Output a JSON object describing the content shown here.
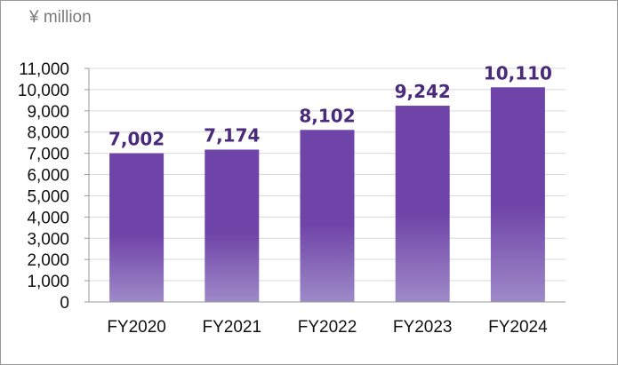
{
  "unit_label": "¥ million",
  "chart_data": {
    "type": "bar",
    "categories": [
      "FY2020",
      "FY2021",
      "FY2022",
      "FY2023",
      "FY2024"
    ],
    "values": [
      7002,
      7174,
      8102,
      9242,
      10110
    ],
    "value_labels": [
      "7,002",
      "7,174",
      "8,102",
      "9,242",
      "10,110"
    ],
    "ylim": [
      0,
      11000
    ],
    "yticks": [
      0,
      1000,
      2000,
      3000,
      4000,
      5000,
      6000,
      7000,
      8000,
      9000,
      10000,
      11000
    ],
    "ytick_labels": [
      "0",
      "1,000",
      "2,000",
      "3,000",
      "4,000",
      "5,000",
      "6,000",
      "7,000",
      "8,000",
      "9,000",
      "10,000",
      "11,000"
    ],
    "grid": true,
    "legend": "none",
    "bar_color": "#6f44a8",
    "bar_color_light": "#9e8ac8",
    "label_color": "#4a2a7a"
  }
}
